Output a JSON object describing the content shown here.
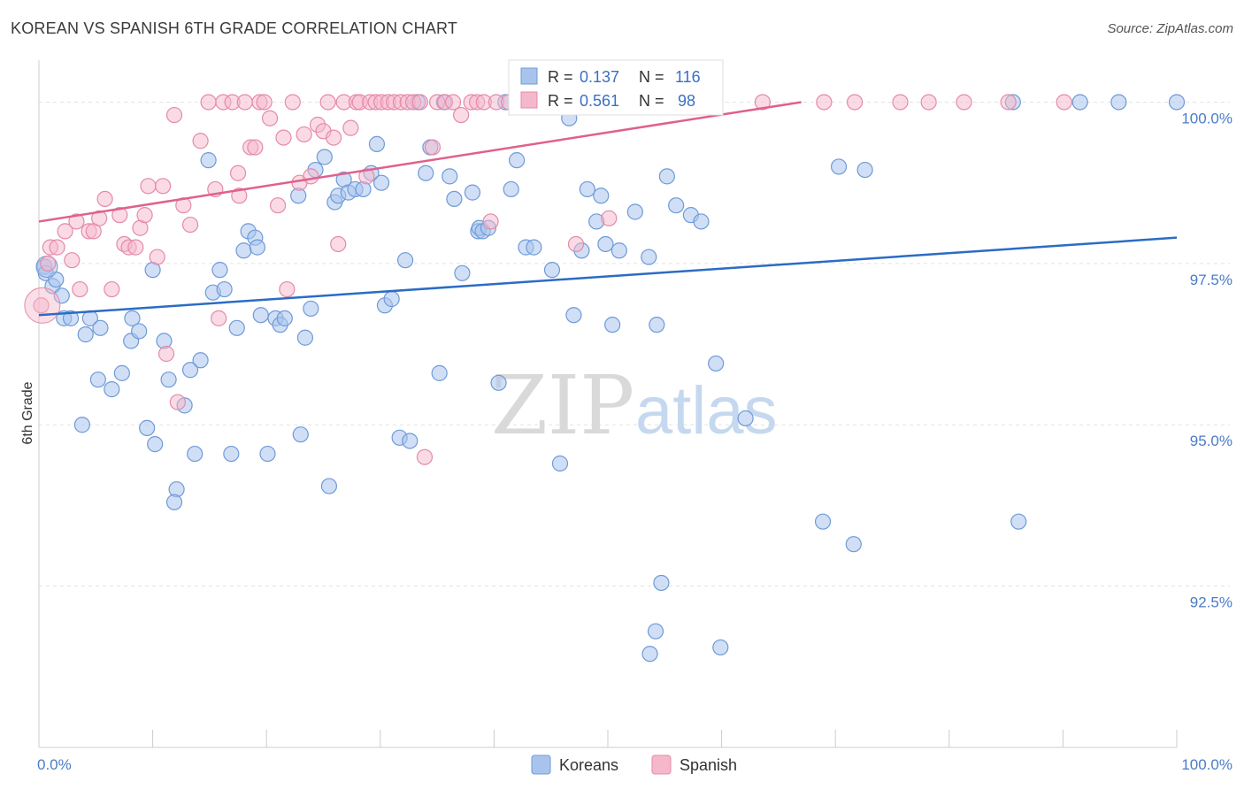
{
  "title": "KOREAN VS SPANISH 6TH GRADE CORRELATION CHART",
  "source": "Source: ZipAtlas.com",
  "watermark": {
    "zip": "ZIP",
    "atlas": "atlas"
  },
  "chart_data": {
    "type": "scatter",
    "title": "KOREAN VS SPANISH 6TH GRADE CORRELATION CHART",
    "xlabel": "",
    "ylabel": "6th Grade",
    "xlim": [
      0,
      100
    ],
    "ylim": [
      90.0,
      100.5
    ],
    "x_tick_labels": [
      {
        "value": 0,
        "label": "0.0%"
      },
      {
        "value": 100,
        "label": "100.0%"
      }
    ],
    "y_tick_labels": [
      {
        "value": 100.0,
        "label": "100.0%"
      },
      {
        "value": 97.5,
        "label": "97.5%"
      },
      {
        "value": 95.0,
        "label": "95.0%"
      },
      {
        "value": 92.5,
        "label": "92.5%"
      }
    ],
    "grid": true,
    "legend_position": "top-center",
    "colors": {
      "korean_fill": "#a9c4ec",
      "korean_stroke": "#6f9ad8",
      "korean_line": "#2b6cc4",
      "spanish_fill": "#f5b8cb",
      "spanish_stroke": "#e58aa8",
      "spanish_line": "#e0608d",
      "axis_label": "#4a7cc7"
    },
    "stats_box": [
      {
        "series": "Koreans",
        "r_label": "R = ",
        "r_value": "0.137",
        "n_label": "N = ",
        "n_value": "116"
      },
      {
        "series": "Spanish",
        "r_label": "R = ",
        "r_value": "0.561",
        "n_label": "N = ",
        "n_value": "98"
      }
    ],
    "series": [
      {
        "name": "Koreans",
        "trend": {
          "x": [
            0,
            100
          ],
          "y": [
            96.7,
            97.9
          ]
        },
        "points": [
          [
            0.5,
            97.45
          ],
          [
            0.6,
            97.35
          ],
          [
            1.2,
            97.15
          ],
          [
            1.5,
            97.25
          ],
          [
            2.0,
            97.0
          ],
          [
            2.2,
            96.65
          ],
          [
            2.8,
            96.65
          ],
          [
            4.1,
            96.4
          ],
          [
            4.5,
            96.65
          ],
          [
            5.4,
            96.5
          ],
          [
            3.8,
            95.0
          ],
          [
            5.2,
            95.7
          ],
          [
            6.4,
            95.55
          ],
          [
            7.3,
            95.8
          ],
          [
            8.1,
            96.3
          ],
          [
            8.2,
            96.65
          ],
          [
            8.8,
            96.45
          ],
          [
            10.0,
            97.4
          ],
          [
            10.2,
            94.7
          ],
          [
            9.5,
            94.95
          ],
          [
            11.0,
            96.3
          ],
          [
            11.4,
            95.7
          ],
          [
            12.1,
            94.0
          ],
          [
            11.9,
            93.8
          ],
          [
            12.8,
            95.3
          ],
          [
            13.3,
            95.85
          ],
          [
            13.7,
            94.55
          ],
          [
            14.2,
            96.0
          ],
          [
            14.9,
            99.1
          ],
          [
            15.3,
            97.05
          ],
          [
            15.9,
            97.4
          ],
          [
            16.3,
            97.1
          ],
          [
            16.9,
            94.55
          ],
          [
            17.4,
            96.5
          ],
          [
            18.0,
            97.7
          ],
          [
            18.4,
            98.0
          ],
          [
            19.0,
            97.9
          ],
          [
            19.2,
            97.75
          ],
          [
            19.5,
            96.7
          ],
          [
            20.1,
            94.55
          ],
          [
            20.8,
            96.65
          ],
          [
            21.2,
            96.55
          ],
          [
            21.6,
            96.65
          ],
          [
            22.8,
            98.55
          ],
          [
            23.0,
            94.85
          ],
          [
            23.4,
            96.35
          ],
          [
            23.9,
            96.8
          ],
          [
            24.3,
            98.95
          ],
          [
            25.1,
            99.15
          ],
          [
            25.5,
            94.05
          ],
          [
            26.0,
            98.45
          ],
          [
            26.3,
            98.55
          ],
          [
            26.8,
            98.8
          ],
          [
            27.2,
            98.6
          ],
          [
            27.8,
            98.65
          ],
          [
            28.5,
            98.65
          ],
          [
            29.2,
            98.9
          ],
          [
            30.1,
            98.75
          ],
          [
            30.4,
            96.85
          ],
          [
            29.7,
            99.35
          ],
          [
            31.0,
            96.95
          ],
          [
            31.7,
            94.8
          ],
          [
            32.2,
            97.55
          ],
          [
            32.6,
            94.75
          ],
          [
            33.3,
            100.0
          ],
          [
            34.0,
            98.9
          ],
          [
            34.4,
            99.3
          ],
          [
            35.2,
            95.8
          ],
          [
            35.6,
            100.0
          ],
          [
            36.1,
            98.85
          ],
          [
            36.5,
            98.5
          ],
          [
            37.2,
            97.35
          ],
          [
            38.1,
            98.6
          ],
          [
            38.6,
            98.0
          ],
          [
            38.7,
            98.05
          ],
          [
            39.0,
            98.0
          ],
          [
            39.5,
            98.05
          ],
          [
            40.4,
            95.65
          ],
          [
            41.0,
            100.0
          ],
          [
            41.5,
            98.65
          ],
          [
            42.0,
            99.1
          ],
          [
            42.8,
            97.75
          ],
          [
            43.5,
            97.75
          ],
          [
            45.1,
            97.4
          ],
          [
            45.8,
            94.4
          ],
          [
            46.6,
            99.75
          ],
          [
            47.0,
            96.7
          ],
          [
            47.7,
            97.7
          ],
          [
            48.2,
            98.65
          ],
          [
            49.0,
            98.15
          ],
          [
            49.4,
            98.55
          ],
          [
            49.8,
            97.8
          ],
          [
            50.4,
            96.55
          ],
          [
            51.0,
            97.7
          ],
          [
            52.4,
            98.3
          ],
          [
            53.6,
            97.6
          ],
          [
            54.3,
            96.55
          ],
          [
            54.7,
            92.55
          ],
          [
            54.2,
            91.8
          ],
          [
            53.7,
            91.45
          ],
          [
            55.2,
            98.85
          ],
          [
            56.0,
            98.4
          ],
          [
            57.3,
            98.25
          ],
          [
            58.2,
            98.15
          ],
          [
            59.5,
            95.95
          ],
          [
            59.9,
            91.55
          ],
          [
            62.1,
            95.1
          ],
          [
            70.3,
            99.0
          ],
          [
            72.6,
            98.95
          ],
          [
            71.6,
            93.15
          ],
          [
            68.9,
            93.5
          ],
          [
            86.1,
            93.5
          ],
          [
            85.6,
            100.0
          ],
          [
            91.5,
            100.0
          ],
          [
            94.9,
            100.0
          ],
          [
            100.0,
            100.0
          ]
        ]
      },
      {
        "name": "Spanish",
        "trend": {
          "x": [
            0,
            67
          ],
          "y": [
            98.15,
            100.0
          ]
        },
        "points": [
          [
            0.2,
            96.85
          ],
          [
            0.8,
            97.5
          ],
          [
            1.0,
            97.75
          ],
          [
            1.6,
            97.75
          ],
          [
            2.3,
            98.0
          ],
          [
            2.9,
            97.55
          ],
          [
            3.3,
            98.15
          ],
          [
            3.6,
            97.1
          ],
          [
            4.4,
            98.0
          ],
          [
            4.8,
            98.0
          ],
          [
            5.3,
            98.2
          ],
          [
            5.8,
            98.5
          ],
          [
            6.4,
            97.1
          ],
          [
            7.1,
            98.25
          ],
          [
            7.5,
            97.8
          ],
          [
            7.9,
            97.75
          ],
          [
            8.5,
            97.75
          ],
          [
            8.9,
            98.05
          ],
          [
            9.3,
            98.25
          ],
          [
            9.6,
            98.7
          ],
          [
            10.4,
            97.6
          ],
          [
            10.9,
            98.7
          ],
          [
            11.2,
            96.1
          ],
          [
            11.9,
            99.8
          ],
          [
            12.2,
            95.35
          ],
          [
            12.7,
            98.4
          ],
          [
            13.3,
            98.1
          ],
          [
            14.2,
            99.4
          ],
          [
            14.9,
            100.0
          ],
          [
            15.5,
            98.65
          ],
          [
            15.8,
            96.65
          ],
          [
            16.2,
            100.0
          ],
          [
            17.0,
            100.0
          ],
          [
            17.5,
            98.9
          ],
          [
            17.6,
            98.55
          ],
          [
            18.1,
            100.0
          ],
          [
            18.6,
            99.3
          ],
          [
            19.0,
            99.3
          ],
          [
            19.4,
            100.0
          ],
          [
            19.8,
            100.0
          ],
          [
            20.3,
            99.75
          ],
          [
            21.0,
            98.4
          ],
          [
            21.5,
            99.45
          ],
          [
            21.8,
            97.1
          ],
          [
            22.3,
            100.0
          ],
          [
            22.9,
            98.75
          ],
          [
            23.3,
            99.5
          ],
          [
            23.9,
            98.85
          ],
          [
            24.5,
            99.65
          ],
          [
            25.0,
            99.55
          ],
          [
            25.4,
            100.0
          ],
          [
            25.9,
            99.45
          ],
          [
            26.3,
            97.8
          ],
          [
            26.8,
            100.0
          ],
          [
            27.4,
            99.6
          ],
          [
            27.9,
            100.0
          ],
          [
            28.2,
            100.0
          ],
          [
            28.8,
            98.85
          ],
          [
            29.1,
            100.0
          ],
          [
            29.6,
            100.0
          ],
          [
            30.1,
            100.0
          ],
          [
            30.7,
            100.0
          ],
          [
            31.2,
            100.0
          ],
          [
            31.8,
            100.0
          ],
          [
            32.4,
            100.0
          ],
          [
            32.9,
            100.0
          ],
          [
            33.5,
            100.0
          ],
          [
            33.9,
            94.5
          ],
          [
            34.6,
            99.3
          ],
          [
            35.0,
            100.0
          ],
          [
            35.7,
            100.0
          ],
          [
            36.4,
            100.0
          ],
          [
            37.1,
            99.8
          ],
          [
            38.0,
            100.0
          ],
          [
            38.5,
            100.0
          ],
          [
            39.1,
            100.0
          ],
          [
            39.7,
            98.15
          ],
          [
            40.2,
            100.0
          ],
          [
            41.3,
            100.0
          ],
          [
            42.0,
            100.0
          ],
          [
            42.9,
            100.0
          ],
          [
            43.6,
            100.0
          ],
          [
            45.1,
            100.0
          ],
          [
            46.0,
            100.0
          ],
          [
            47.2,
            97.8
          ],
          [
            48.1,
            100.0
          ],
          [
            50.1,
            98.2
          ],
          [
            51.2,
            100.0
          ],
          [
            52.8,
            100.0
          ],
          [
            56.5,
            100.0
          ],
          [
            63.6,
            100.0
          ],
          [
            69.0,
            100.0
          ],
          [
            71.7,
            100.0
          ],
          [
            75.7,
            100.0
          ],
          [
            78.2,
            100.0
          ],
          [
            81.3,
            100.0
          ],
          [
            85.2,
            100.0
          ],
          [
            90.1,
            100.0
          ]
        ]
      }
    ]
  },
  "legend": {
    "items": [
      {
        "label": "Koreans"
      },
      {
        "label": "Spanish"
      }
    ]
  }
}
